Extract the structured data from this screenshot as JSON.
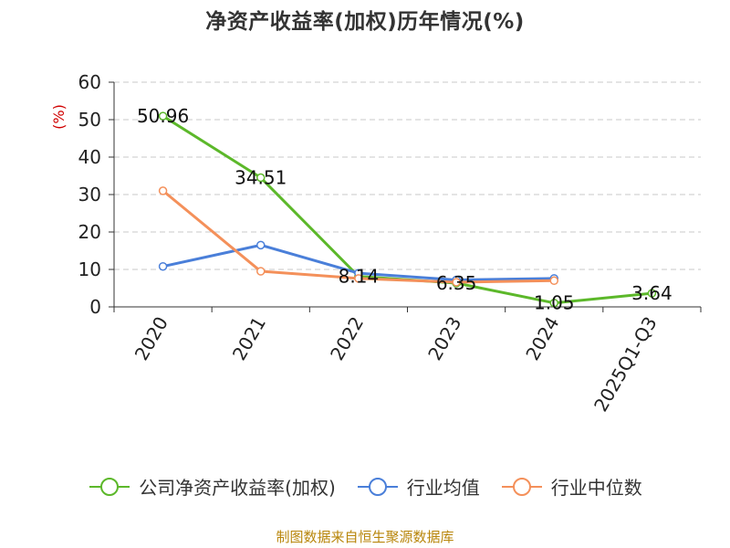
{
  "title": "净资产收益率(加权)历年情况(%)",
  "source": "制图数据来自恒生聚源数据库",
  "chart_data": {
    "type": "line",
    "title": "净资产收益率(加权)历年情况(%)",
    "xlabel": "",
    "ylabel": "(%)",
    "ylim": [
      0,
      60
    ],
    "yticks": [
      0,
      10,
      20,
      30,
      40,
      50,
      60
    ],
    "grid": true,
    "legend_position": "bottom",
    "categories": [
      "2020",
      "2021",
      "2022",
      "2023",
      "2024",
      "2025Q1-Q3"
    ],
    "series": [
      {
        "name": "公司净资产收益率(加权)",
        "color": "#5cb82a",
        "values": [
          50.96,
          34.51,
          8.14,
          6.35,
          1.05,
          3.64
        ],
        "labels": [
          "50.96",
          "34.51",
          "8.14",
          "6.35",
          "1.05",
          "3.64"
        ]
      },
      {
        "name": "行业均值",
        "color": "#4a7fd9",
        "values": [
          10.8,
          16.5,
          9.0,
          7.2,
          7.6,
          null
        ]
      },
      {
        "name": "行业中位数",
        "color": "#f4905a",
        "values": [
          31.0,
          9.5,
          7.6,
          6.6,
          7.0,
          null
        ]
      }
    ]
  }
}
